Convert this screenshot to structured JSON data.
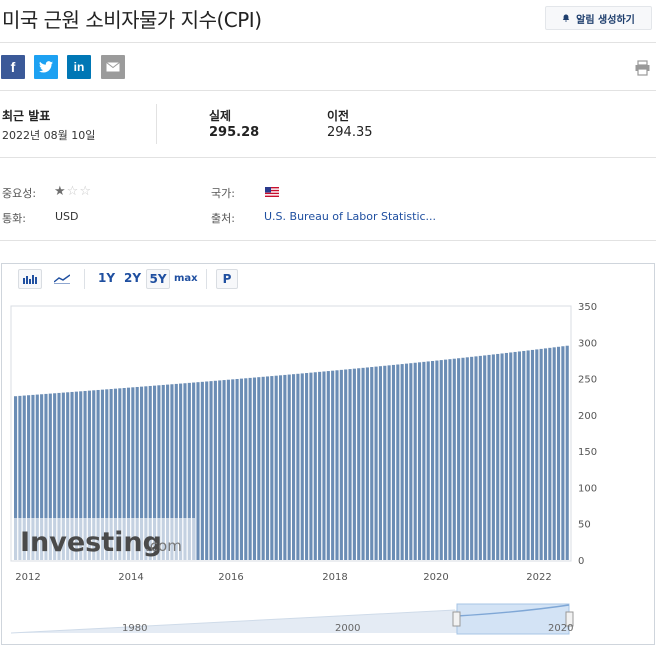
{
  "header": {
    "title": "미국 근원 소비자물가 지수(CPI)",
    "alert_label": "알림 생성하기"
  },
  "share": {
    "facebook": "f",
    "twitter_icon": "twitter-bird",
    "linkedin": "in",
    "email_icon": "envelope",
    "print_icon": "printer"
  },
  "release": {
    "latest_label": "최근 발표",
    "latest_date": "2022년 08월 10일",
    "actual_label": "실제",
    "actual_value": "295.28",
    "previous_label": "이전",
    "previous_value": "294.35"
  },
  "meta": {
    "importance_label": "중요성:",
    "importance_stars": 1,
    "importance_max": 3,
    "country_label": "국가:",
    "country_icon": "us-flag",
    "currency_label": "통화:",
    "currency_value": "USD",
    "source_label": "출처:",
    "source_value": "U.S. Bureau of Labor Statistic..."
  },
  "toolbar": {
    "bar_icon": "bar-chart-icon",
    "line_icon": "line-chart-icon",
    "range_1y": "1Y",
    "range_2y": "2Y",
    "range_5y": "5Y",
    "range_max": "max",
    "p_button": "P"
  },
  "watermark": {
    "brand": "Investing",
    "suffix": ".com"
  },
  "chart_data": {
    "type": "bar",
    "x_ticks": [
      "2012",
      "2014",
      "2016",
      "2018",
      "2020",
      "2022"
    ],
    "y_ticks": [
      "0",
      "50",
      "100",
      "150",
      "200",
      "250",
      "300",
      "350"
    ],
    "ylim": [
      0,
      350
    ],
    "start_value": 225.7,
    "end_value": 295.28,
    "bar_count": 128,
    "colors": {
      "bar": "#6b8db5",
      "navigator": "#7fa7d6"
    }
  },
  "navigator": {
    "ticks": [
      "1980",
      "2000",
      "2020"
    ]
  }
}
